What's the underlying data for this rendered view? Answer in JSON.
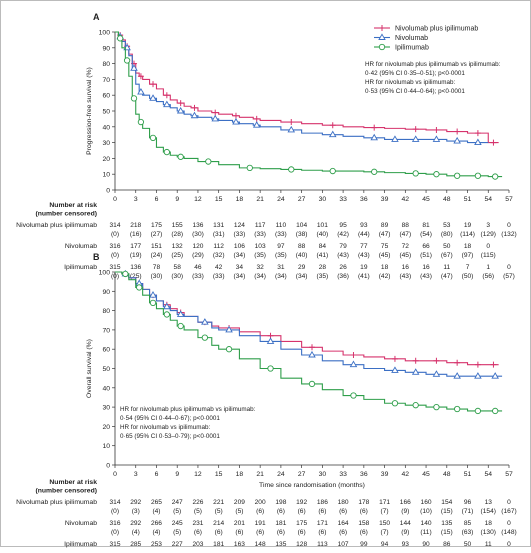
{
  "chart_data": [
    {
      "type": "line",
      "panel_label": "A",
      "ylabel": "Progression-free survival (%)",
      "xlabel": "",
      "xlim": [
        0,
        57
      ],
      "ylim": [
        0,
        100
      ],
      "xticks": [
        0,
        3,
        6,
        9,
        12,
        15,
        18,
        21,
        24,
        27,
        30,
        33,
        36,
        39,
        42,
        45,
        48,
        51,
        54,
        57
      ],
      "yticks": [
        0,
        10,
        20,
        30,
        40,
        50,
        60,
        70,
        80,
        90,
        100
      ],
      "legend_position": "top-right",
      "series": [
        {
          "name": "Nivolumab plus ipilimumab",
          "color": "#d6336c",
          "marker": "plus",
          "x": [
            0,
            0.5,
            1,
            1.5,
            2,
            2.5,
            3,
            3.5,
            4,
            5,
            6,
            7,
            8,
            9,
            10,
            11,
            12,
            14,
            15,
            17,
            18,
            20,
            21,
            24,
            27,
            30,
            33,
            36,
            39,
            42,
            45,
            48,
            51,
            54,
            55.5
          ],
          "y": [
            100,
            98,
            95,
            91,
            86,
            80,
            74,
            72,
            70,
            67,
            64,
            60,
            57,
            55,
            53,
            52,
            50,
            49,
            48,
            47,
            46,
            45,
            44,
            43,
            42,
            41,
            40,
            39.5,
            39,
            38.5,
            38,
            37,
            36,
            30,
            30
          ]
        },
        {
          "name": "Nivolumab",
          "color": "#3b6fc4",
          "marker": "triangle",
          "x": [
            0,
            0.5,
            1,
            1.5,
            2,
            2.5,
            3,
            3.5,
            4,
            5,
            6,
            7,
            8,
            9,
            10,
            11,
            12,
            14,
            15,
            17,
            18,
            20,
            21,
            24,
            27,
            30,
            33,
            36,
            39,
            42,
            45,
            48,
            51,
            54
          ],
          "y": [
            100,
            97,
            94,
            90,
            85,
            77,
            67,
            62,
            60,
            58,
            56,
            54,
            52,
            50,
            48,
            47,
            46,
            45,
            44,
            43,
            42,
            41,
            40,
            38,
            36,
            35,
            34,
            33,
            32,
            32,
            32,
            31,
            30,
            30
          ]
        },
        {
          "name": "Ipilimumab",
          "color": "#2e9e4a",
          "marker": "circle",
          "x": [
            0,
            0.5,
            1,
            1.5,
            2,
            2.5,
            3,
            3.5,
            4,
            5,
            6,
            7,
            8,
            9,
            10,
            12,
            15,
            18,
            21,
            24,
            27,
            30,
            33,
            36,
            39,
            42,
            45,
            48,
            51,
            54,
            56
          ],
          "y": [
            100,
            96,
            90,
            82,
            72,
            58,
            48,
            43,
            39,
            33,
            27,
            24,
            22,
            21,
            20,
            18,
            16,
            14,
            13.5,
            13,
            12.5,
            12,
            12,
            11.5,
            11,
            10.5,
            10,
            9,
            9,
            8.5,
            8.5
          ]
        }
      ],
      "annotations": [
        "HR for nivolumab plus ipilimumab vs ipilimumab:",
        "0·42 (95% CI 0·35–0·51); p<0·0001",
        "HR for nivolumab vs ipilimumab:",
        "0·53 (95% CI 0·44–0·64); p<0·0001"
      ],
      "risk_table": {
        "title": "Number at risk",
        "subtitle": "(number censored)",
        "rows": [
          {
            "name": "Nivolumab plus ipilimumab",
            "at_risk": [
              "314",
              "218",
              "175",
              "155",
              "136",
              "131",
              "124",
              "117",
              "110",
              "104",
              "101",
              "95",
              "93",
              "89",
              "88",
              "81",
              "53",
              "19",
              "3",
              "0"
            ],
            "censored": [
              "(0)",
              "(16)",
              "(27)",
              "(28)",
              "(30)",
              "(31)",
              "(33)",
              "(33)",
              "(33)",
              "(38)",
              "(40)",
              "(42)",
              "(44)",
              "(47)",
              "(47)",
              "(54)",
              "(80)",
              "(114)",
              "(129)",
              "(132)"
            ]
          },
          {
            "name": "Nivolumab",
            "at_risk": [
              "316",
              "177",
              "151",
              "132",
              "120",
              "112",
              "106",
              "103",
              "97",
              "88",
              "84",
              "79",
              "77",
              "75",
              "72",
              "66",
              "50",
              "18",
              "0",
              ""
            ],
            "censored": [
              "(0)",
              "(19)",
              "(24)",
              "(25)",
              "(29)",
              "(32)",
              "(34)",
              "(35)",
              "(35)",
              "(40)",
              "(41)",
              "(43)",
              "(43)",
              "(45)",
              "(45)",
              "(51)",
              "(67)",
              "(97)",
              "(115)",
              ""
            ]
          },
          {
            "name": "Ipilimumab",
            "at_risk": [
              "315",
              "136",
              "78",
              "58",
              "46",
              "42",
              "34",
              "32",
              "31",
              "29",
              "28",
              "26",
              "19",
              "18",
              "16",
              "16",
              "11",
              "7",
              "1",
              "0"
            ],
            "censored": [
              "(0)",
              "(25)",
              "(30)",
              "(30)",
              "(33)",
              "(33)",
              "(34)",
              "(34)",
              "(34)",
              "(34)",
              "(35)",
              "(36)",
              "(41)",
              "(42)",
              "(43)",
              "(43)",
              "(47)",
              "(50)",
              "(56)",
              "(57)"
            ]
          }
        ]
      }
    },
    {
      "type": "line",
      "panel_label": "B",
      "ylabel": "Overall survival (%)",
      "xlabel": "Time since randomisation (months)",
      "xlim": [
        0,
        57
      ],
      "ylim": [
        0,
        100
      ],
      "xticks": [
        0,
        3,
        6,
        9,
        12,
        15,
        18,
        21,
        24,
        27,
        30,
        33,
        36,
        39,
        42,
        45,
        48,
        51,
        54,
        57
      ],
      "yticks": [
        0,
        10,
        20,
        30,
        40,
        50,
        60,
        70,
        80,
        90,
        100
      ],
      "series": [
        {
          "name": "Nivolumab plus ipilimumab",
          "color": "#d6336c",
          "marker": "plus",
          "x": [
            0,
            1,
            2,
            3,
            4,
            5,
            6,
            7,
            8,
            9,
            10,
            12,
            14,
            15,
            18,
            21,
            24,
            27,
            30,
            33,
            36,
            39,
            42,
            45,
            48,
            51,
            54,
            55.5
          ],
          "y": [
            100,
            99,
            97,
            94,
            91,
            88,
            85,
            83,
            81,
            79,
            77,
            74,
            72,
            71,
            69,
            67,
            64,
            61,
            59,
            57,
            56,
            55,
            54,
            54,
            53,
            52,
            52,
            52
          ]
        },
        {
          "name": "Nivolumab",
          "color": "#3b6fc4",
          "marker": "triangle",
          "x": [
            0,
            1,
            2,
            3,
            4,
            5,
            6,
            7,
            8,
            9,
            10,
            12,
            14,
            15,
            18,
            21,
            24,
            27,
            30,
            33,
            36,
            39,
            42,
            45,
            48,
            51,
            54,
            56
          ],
          "y": [
            100,
            99,
            97,
            94,
            91,
            88,
            85,
            82,
            80,
            78,
            77,
            74,
            71,
            70,
            67,
            64,
            60,
            57,
            54,
            52,
            50,
            49,
            48,
            47,
            46,
            46,
            46,
            46
          ]
        },
        {
          "name": "Ipilimumab",
          "color": "#2e9e4a",
          "marker": "circle",
          "x": [
            0,
            1,
            2,
            3,
            4,
            5,
            6,
            7,
            8,
            9,
            10,
            12,
            14,
            15,
            18,
            21,
            24,
            27,
            30,
            33,
            36,
            39,
            42,
            45,
            48,
            51,
            54,
            56
          ],
          "y": [
            100,
            99,
            96,
            92,
            88,
            84,
            81,
            78,
            75,
            72,
            70,
            66,
            62,
            60,
            55,
            50,
            45,
            42,
            39,
            36,
            34,
            32,
            31,
            30,
            29,
            28,
            28,
            28
          ]
        }
      ],
      "annotations": [
        "HR for nivolumab plus ipilimumab vs ipilimumab:",
        "0·54 (95% CI 0·44–0·67); p<0·0001",
        "HR for nivolumab vs ipilimumab:",
        "0·65 (95% CI 0·53–0·79); p<0·0001"
      ],
      "risk_table": {
        "title": "Number at risk",
        "subtitle": "(number censored)",
        "rows": [
          {
            "name": "Nivolumab plus ipilimumab",
            "at_risk": [
              "314",
              "292",
              "265",
              "247",
              "226",
              "221",
              "209",
              "200",
              "198",
              "192",
              "186",
              "180",
              "178",
              "171",
              "166",
              "160",
              "154",
              "96",
              "13",
              "0"
            ],
            "censored": [
              "(0)",
              "(3)",
              "(4)",
              "(5)",
              "(5)",
              "(5)",
              "(5)",
              "(6)",
              "(6)",
              "(6)",
              "(6)",
              "(6)",
              "(6)",
              "(7)",
              "(9)",
              "(10)",
              "(15)",
              "(71)",
              "(154)",
              "(167)"
            ]
          },
          {
            "name": "Nivolumab",
            "at_risk": [
              "316",
              "292",
              "266",
              "245",
              "231",
              "214",
              "201",
              "191",
              "181",
              "175",
              "171",
              "164",
              "158",
              "150",
              "144",
              "140",
              "135",
              "85",
              "18",
              "0"
            ],
            "censored": [
              "(0)",
              "(4)",
              "(4)",
              "(5)",
              "(6)",
              "(6)",
              "(6)",
              "(6)",
              "(6)",
              "(6)",
              "(6)",
              "(6)",
              "(6)",
              "(7)",
              "(9)",
              "(11)",
              "(15)",
              "(63)",
              "(130)",
              "(148)"
            ]
          },
          {
            "name": "Ipilimumab",
            "at_risk": [
              "315",
              "285",
              "253",
              "227",
              "203",
              "181",
              "163",
              "148",
              "135",
              "128",
              "113",
              "107",
              "99",
              "94",
              "93",
              "90",
              "86",
              "50",
              "11",
              "0"
            ],
            "censored": [
              "(0)",
              "(4)",
              "(7)",
              "(8)",
              "(9)",
              "(9)",
              "(9)",
              "(9)",
              "(10)",
              "(11)",
              "(11)",
              "(11)",
              "(13)",
              "(14)",
              "(14)",
              "(15)",
              "(15)",
              "(48)",
              "(86)",
              "(97)"
            ]
          }
        ]
      }
    }
  ]
}
